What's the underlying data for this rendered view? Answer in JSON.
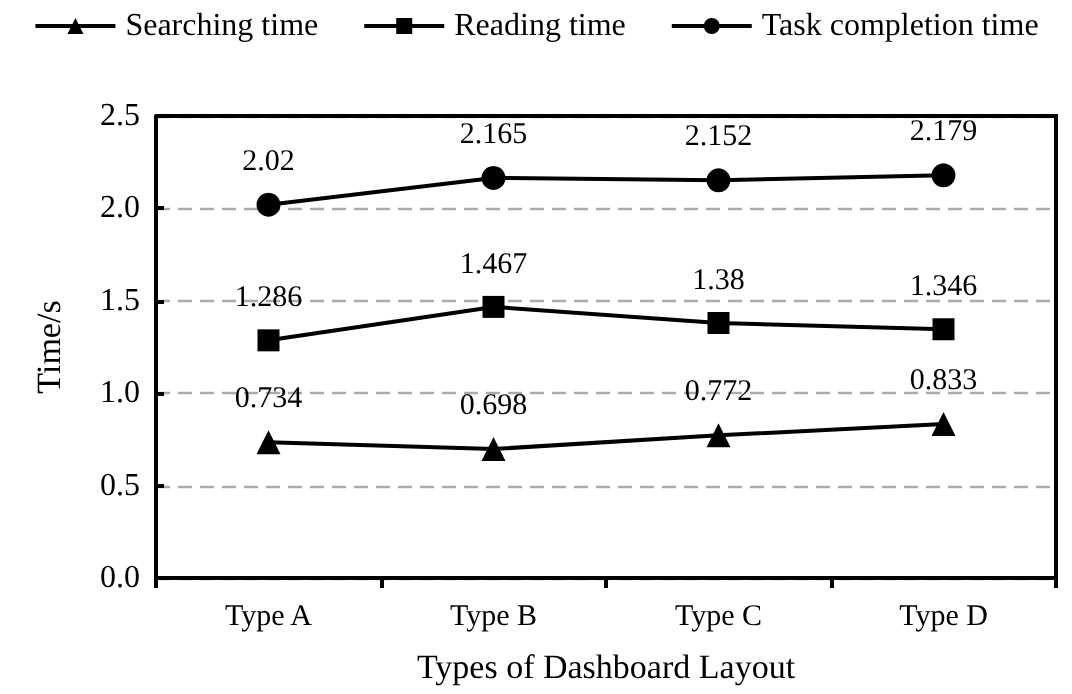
{
  "chart_data": {
    "type": "line",
    "xlabel": "Types of Dashboard Layout",
    "ylabel": "Time/s",
    "categories": [
      "Type A",
      "Type B",
      "Type C",
      "Type D"
    ],
    "series": [
      {
        "name": "Searching time",
        "color": "#000000",
        "marker": "triangle",
        "values": [
          0.734,
          0.698,
          0.772,
          0.833
        ]
      },
      {
        "name": "Reading time",
        "color": "#000000",
        "marker": "square",
        "values": [
          1.286,
          1.467,
          1.38,
          1.346
        ]
      },
      {
        "name": "Task completion time",
        "color": "#000000",
        "marker": "circle",
        "values": [
          2.02,
          2.165,
          2.152,
          2.179
        ]
      }
    ],
    "ylim": [
      0,
      2.5
    ],
    "yticks": [
      {
        "value": 0,
        "label": "0.0"
      },
      0.5,
      {
        "value": 1,
        "label": "1.0"
      },
      1.5,
      {
        "value": 2,
        "label": "2.0"
      },
      2.5
    ],
    "grid": "y",
    "legend": "top",
    "data_labels": true,
    "line_style": "solid"
  }
}
